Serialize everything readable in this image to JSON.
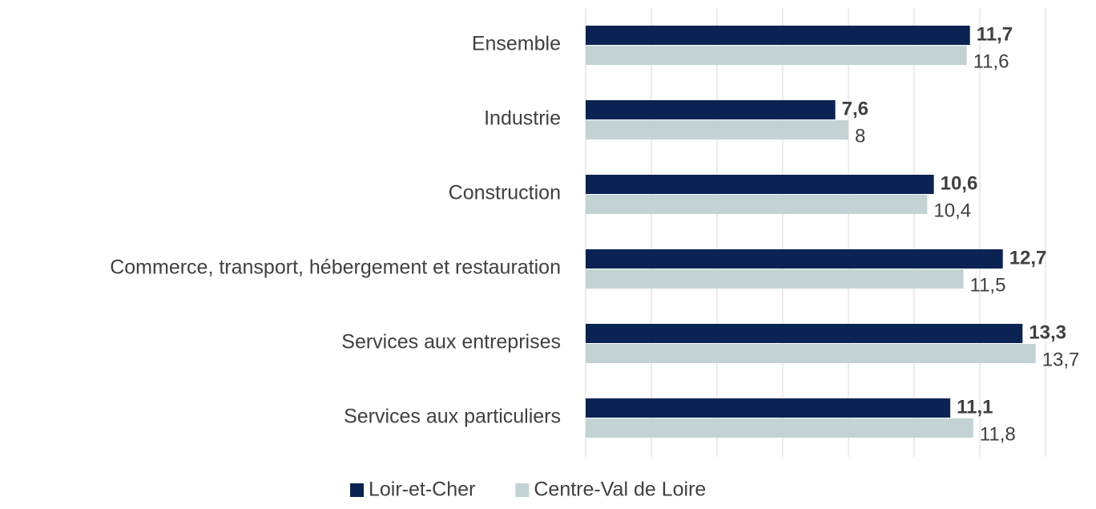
{
  "chart_data": {
    "type": "bar",
    "orientation": "horizontal",
    "categories": [
      "Ensemble",
      "Industrie",
      "Construction",
      "Commerce, transport, hébergement et restauration",
      "Services aux entreprises",
      "Services aux particuliers"
    ],
    "series": [
      {
        "name": "Loir-et-Cher",
        "color": "#0b2352",
        "values": [
          11.7,
          7.6,
          10.6,
          12.7,
          13.3,
          11.1
        ],
        "value_labels": [
          "11,7",
          "7,6",
          "10,6",
          "12,7",
          "13,3",
          "11,1"
        ]
      },
      {
        "name": "Centre-Val de Loire",
        "color": "#c3d3d3",
        "values": [
          11.6,
          8,
          10.4,
          11.5,
          13.7,
          11.8
        ],
        "value_labels": [
          "11,6",
          "8",
          "10,4",
          "11,5",
          "13,7",
          "11,8"
        ]
      }
    ],
    "xlim": [
      0,
      14
    ],
    "xticks": [
      0,
      2,
      4,
      6,
      8,
      10,
      12,
      14
    ],
    "grid": true,
    "legend": "bottom"
  }
}
